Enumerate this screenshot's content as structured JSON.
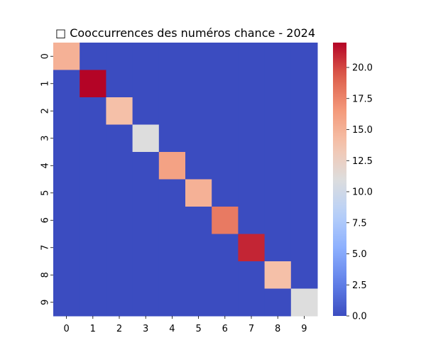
{
  "chart_data": {
    "type": "heatmap",
    "title": "□ Cooccurrences des numéros chance - 2024",
    "x_categories": [
      "0",
      "1",
      "2",
      "3",
      "4",
      "5",
      "6",
      "7",
      "8",
      "9"
    ],
    "y_categories": [
      "0",
      "1",
      "2",
      "3",
      "4",
      "5",
      "6",
      "7",
      "8",
      "9"
    ],
    "values": [
      [
        15,
        0,
        0,
        0,
        0,
        0,
        0,
        0,
        0,
        0
      ],
      [
        0,
        22,
        0,
        0,
        0,
        0,
        0,
        0,
        0,
        0
      ],
      [
        0,
        0,
        14,
        0,
        0,
        0,
        0,
        0,
        0,
        0
      ],
      [
        0,
        0,
        0,
        11,
        0,
        0,
        0,
        0,
        0,
        0
      ],
      [
        0,
        0,
        0,
        0,
        16,
        0,
        0,
        0,
        0,
        0
      ],
      [
        0,
        0,
        0,
        0,
        0,
        15,
        0,
        0,
        0,
        0
      ],
      [
        0,
        0,
        0,
        0,
        0,
        0,
        18,
        0,
        0,
        0
      ],
      [
        0,
        0,
        0,
        0,
        0,
        0,
        0,
        21,
        0,
        0
      ],
      [
        0,
        0,
        0,
        0,
        0,
        0,
        0,
        0,
        14,
        0
      ],
      [
        0,
        0,
        0,
        0,
        0,
        0,
        0,
        0,
        0,
        11
      ]
    ],
    "colormap": "coolwarm",
    "vmin": 0,
    "vmax": 22,
    "colorbar": {
      "ticks": [
        0.0,
        2.5,
        5.0,
        7.5,
        10.0,
        12.5,
        15.0,
        17.5,
        20.0
      ],
      "tick_labels": [
        "0.0",
        "2.5",
        "5.0",
        "7.5",
        "10.0",
        "12.5",
        "15.0",
        "17.5",
        "20.0"
      ]
    },
    "xlabel": "",
    "ylabel": "",
    "grid": false,
    "legend": "colorbar-right"
  }
}
